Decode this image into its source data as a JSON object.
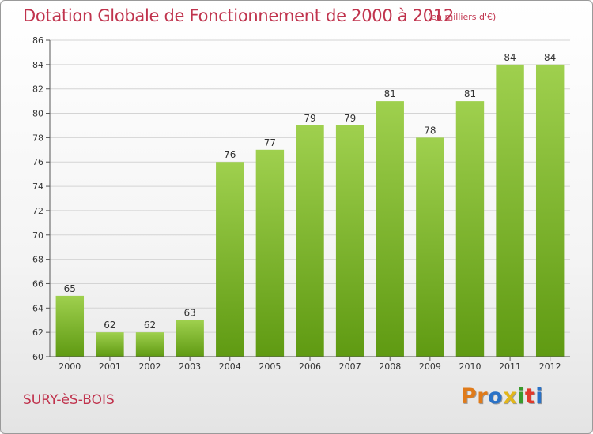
{
  "title": "Dotation Globale de Fonctionnement de 2000 à 2012",
  "unit_note": "(en milliers d'€)",
  "commune": "SURY-èS-BOIS",
  "brand": {
    "letters": [
      "P",
      "r",
      "o",
      "x",
      "i",
      "t",
      "i"
    ],
    "colors": [
      "#e07b1a",
      "#e07b1a",
      "#2a72c7",
      "#e2b61b",
      "#3a9a2c",
      "#e03a2c",
      "#2a72c7"
    ]
  },
  "colors": {
    "bar_light": "#9fd04e",
    "bar_dark": "#5f9a12",
    "title": "#c0334d",
    "grid": "#d4d4d4"
  },
  "chart_data": {
    "type": "bar",
    "categories": [
      "2000",
      "2001",
      "2002",
      "2003",
      "2004",
      "2005",
      "2006",
      "2007",
      "2008",
      "2009",
      "2010",
      "2011",
      "2012"
    ],
    "values": [
      65,
      62,
      62,
      63,
      76,
      77,
      79,
      79,
      81,
      78,
      81,
      84,
      84
    ],
    "title": "Dotation Globale de Fonctionnement de 2000 à 2012",
    "ylim": [
      60,
      86
    ],
    "yticks": [
      60,
      62,
      64,
      66,
      68,
      70,
      72,
      74,
      76,
      78,
      80,
      82,
      84,
      86
    ],
    "grid": true,
    "data_labels": true
  }
}
